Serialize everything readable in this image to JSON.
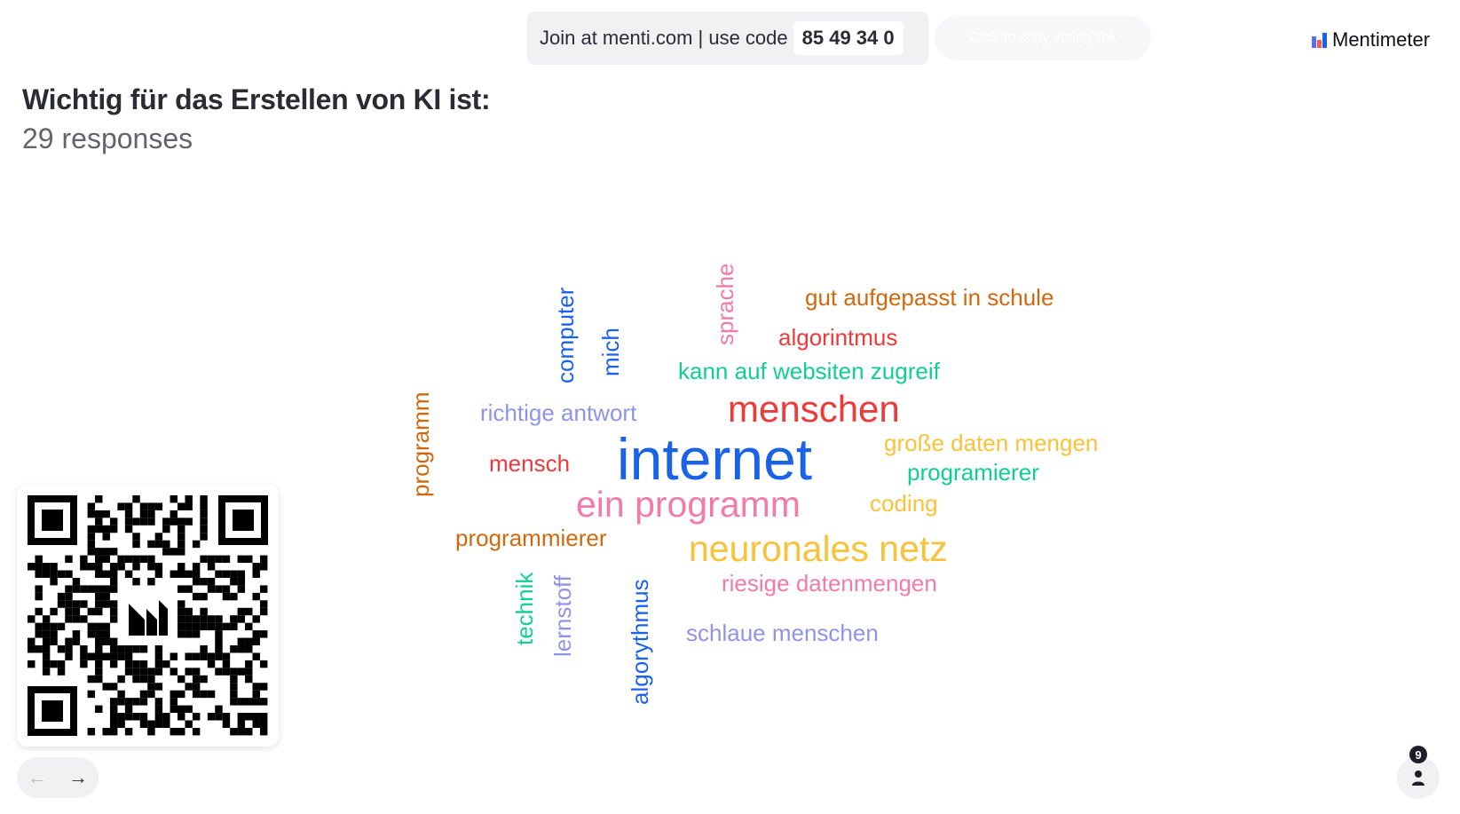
{
  "header": {
    "join_text": "Join at menti.com | use code",
    "code": "85 49 34 0",
    "copy_link_label": "Click to copy voting link",
    "brand": "Mentimeter"
  },
  "question": {
    "title": "Wichtig für das Erstellen von KI ist:",
    "responses": "29 responses"
  },
  "word_cloud": {
    "colors": {
      "blue": "#1a63e8",
      "red": "#ee3a3a",
      "pink": "#f27ba8",
      "green": "#10cf8f",
      "orange": "#d0690e",
      "yellow": "#f8c23a",
      "lavender": "#8f94e8"
    },
    "words": [
      {
        "text": "internet",
        "color": "blue"
      },
      {
        "text": "menschen",
        "color": "red"
      },
      {
        "text": "ein programm",
        "color": "pink"
      },
      {
        "text": "neuronales netz",
        "color": "yellow"
      },
      {
        "text": "gut aufgepasst in schule",
        "color": "orange"
      },
      {
        "text": "algorintmus",
        "color": "red"
      },
      {
        "text": "kann auf websiten zugreif",
        "color": "green"
      },
      {
        "text": "richtige antwort",
        "color": "lavender"
      },
      {
        "text": "große daten mengen",
        "color": "yellow"
      },
      {
        "text": "programierer",
        "color": "green"
      },
      {
        "text": "mensch",
        "color": "red"
      },
      {
        "text": "coding",
        "color": "yellow"
      },
      {
        "text": "programmierer",
        "color": "orange"
      },
      {
        "text": "riesige datenmengen",
        "color": "pink"
      },
      {
        "text": "schlaue menschen",
        "color": "lavender"
      },
      {
        "text": "computer",
        "color": "blue"
      },
      {
        "text": "mich",
        "color": "blue"
      },
      {
        "text": "sprache",
        "color": "pink"
      },
      {
        "text": "programm",
        "color": "orange"
      },
      {
        "text": "technik",
        "color": "green"
      },
      {
        "text": "lernstoff",
        "color": "lavender"
      },
      {
        "text": "algorythmus",
        "color": "blue"
      }
    ]
  },
  "navigation": {
    "prev_icon": "arrow-left-icon",
    "next_icon": "arrow-right-icon"
  },
  "participants": {
    "count": "9",
    "icon": "person-icon"
  },
  "qr_code": {
    "icon": "qr-code-icon"
  }
}
